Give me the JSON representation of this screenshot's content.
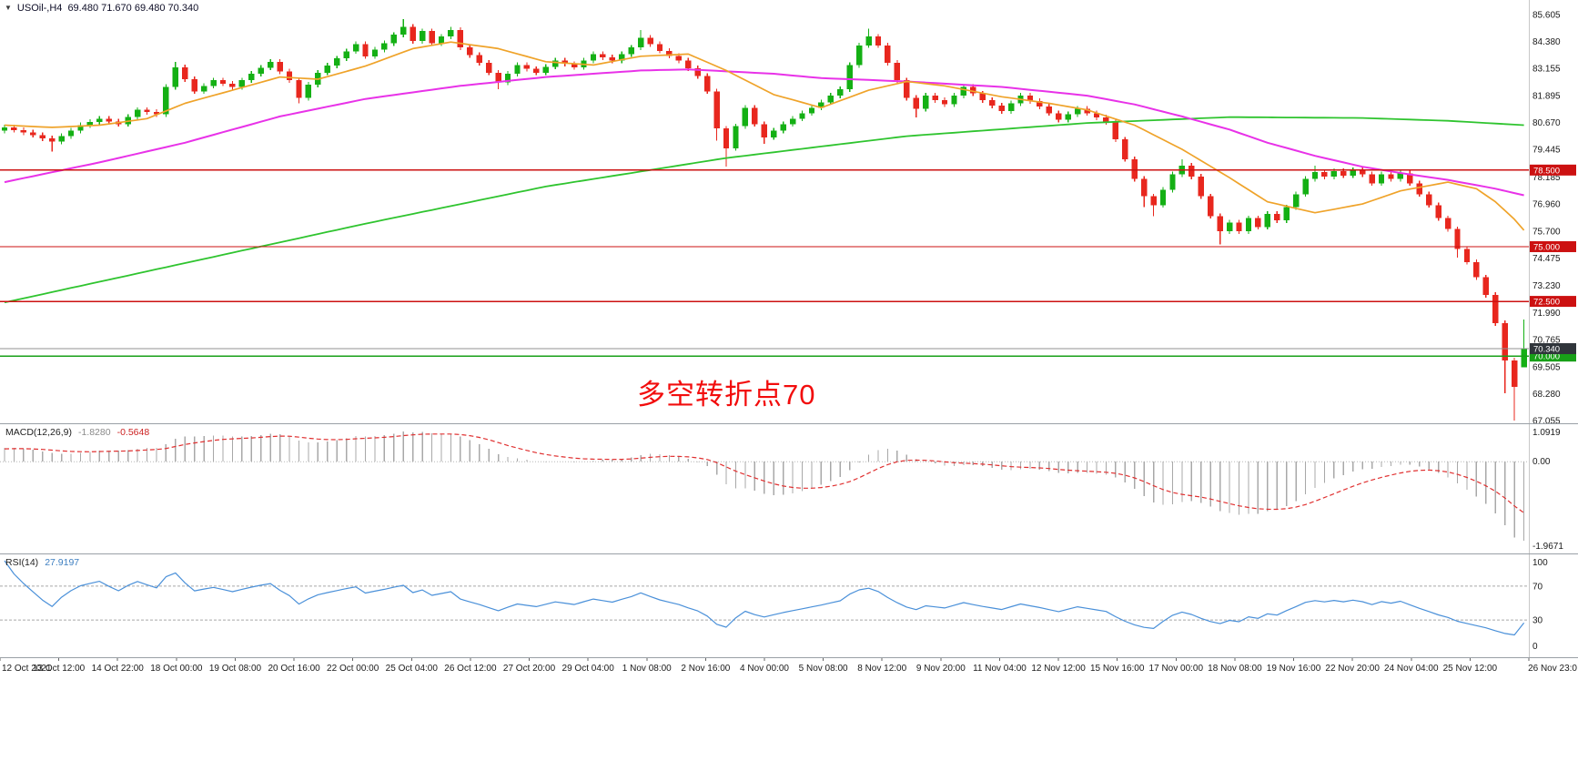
{
  "header": {
    "symbol": "USOil-,H4",
    "ohlc": "69.480 71.670 69.480 70.340"
  },
  "annotation": {
    "text": "多空转折点70",
    "color": "#f20d0d"
  },
  "chart_data": {
    "type": "candlestick",
    "title": "USOil-,H4",
    "grid": false,
    "y_axis": {
      "min": 67.055,
      "max": 85.605,
      "labels": [
        "85.605",
        "84.380",
        "83.155",
        "81.895",
        "80.670",
        "79.445",
        "78.185",
        "76.960",
        "75.700",
        "74.475",
        "73.230",
        "71.990",
        "70.765",
        "69.505",
        "68.280",
        "67.055"
      ]
    },
    "x_axis": {
      "labels": [
        "12 Oct 2021",
        "13 Oct 12:00",
        "14 Oct 22:00",
        "18 Oct 00:00",
        "19 Oct 08:00",
        "20 Oct 16:00",
        "22 Oct 00:00",
        "25 Oct 04:00",
        "26 Oct 12:00",
        "27 Oct 20:00",
        "29 Oct 04:00",
        "1 Nov 08:00",
        "2 Nov 16:00",
        "4 Nov 00:00",
        "5 Nov 08:00",
        "8 Nov 12:00",
        "9 Nov 20:00",
        "11 Nov 04:00",
        "12 Nov 12:00",
        "15 Nov 16:00",
        "17 Nov 00:00",
        "18 Nov 08:00",
        "19 Nov 16:00",
        "22 Nov 20:00",
        "24 Nov 04:00",
        "25 Nov 12:00",
        "26 Nov 23:0"
      ]
    },
    "colors": {
      "bull": "#14b014",
      "bear": "#e8271e",
      "axis_text": "#1a1a1a"
    },
    "current_price": {
      "value": 70.34,
      "label": "70.340"
    },
    "levels": [
      {
        "price": 78.5,
        "label": "78.500",
        "color": "#cc1111",
        "tag_bg": "#cc1111",
        "tag": true,
        "width": 1.4
      },
      {
        "price": 75.0,
        "label": "75.000",
        "color": "#cc1111",
        "tag_bg": "#cc1111",
        "tag": true,
        "width": 1.4
      },
      {
        "price": 72.5,
        "label": "72.500",
        "color": "#cc1111",
        "tag_bg": "#cc1111",
        "tag": true,
        "width": 1.4
      },
      {
        "price": 70.0,
        "label": "70.000",
        "color": "#18a018",
        "tag_bg": "#18a018",
        "tag": true,
        "width": 1.6
      },
      {
        "price": 70.34,
        "label": "70.340",
        "color": "#909090",
        "tag_bg": "#30353b",
        "tag": true,
        "width": 1.0
      }
    ],
    "moving_averages": [
      {
        "name": "ma-slow-green",
        "color": "#2fc42f",
        "width": 1.8,
        "points": [
          [
            0,
            72.45
          ],
          [
            19,
            74.25
          ],
          [
            38,
            76.05
          ],
          [
            57,
            77.75
          ],
          [
            76,
            79.05
          ],
          [
            95,
            80.05
          ],
          [
            114,
            80.65
          ],
          [
            129,
            80.92
          ],
          [
            143,
            80.88
          ],
          [
            152,
            80.75
          ],
          [
            160,
            80.55
          ]
        ]
      },
      {
        "name": "ma-mid-magenta",
        "color": "#e832e8",
        "width": 2.0,
        "points": [
          [
            0,
            77.95
          ],
          [
            10,
            78.85
          ],
          [
            19,
            79.75
          ],
          [
            29,
            80.95
          ],
          [
            38,
            81.75
          ],
          [
            48,
            82.35
          ],
          [
            57,
            82.75
          ],
          [
            67,
            83.05
          ],
          [
            72,
            83.1
          ],
          [
            81,
            82.9
          ],
          [
            86,
            82.7
          ],
          [
            95,
            82.55
          ],
          [
            105,
            82.3
          ],
          [
            114,
            81.9
          ],
          [
            119,
            81.5
          ],
          [
            124,
            80.95
          ],
          [
            129,
            80.35
          ],
          [
            133,
            79.75
          ],
          [
            138,
            79.15
          ],
          [
            143,
            78.65
          ],
          [
            148,
            78.3
          ],
          [
            152,
            78.05
          ],
          [
            157,
            77.65
          ],
          [
            160,
            77.35
          ]
        ]
      },
      {
        "name": "ma-fast-orange",
        "color": "#efa32a",
        "width": 1.7,
        "points": [
          [
            0,
            80.55
          ],
          [
            5,
            80.45
          ],
          [
            10,
            80.55
          ],
          [
            15,
            80.85
          ],
          [
            19,
            81.55
          ],
          [
            24,
            82.15
          ],
          [
            29,
            82.75
          ],
          [
            33,
            82.65
          ],
          [
            38,
            83.25
          ],
          [
            43,
            84.05
          ],
          [
            47,
            84.35
          ],
          [
            52,
            84.05
          ],
          [
            57,
            83.45
          ],
          [
            62,
            83.3
          ],
          [
            67,
            83.7
          ],
          [
            72,
            83.8
          ],
          [
            76,
            83.05
          ],
          [
            81,
            81.95
          ],
          [
            86,
            81.35
          ],
          [
            91,
            82.15
          ],
          [
            95,
            82.55
          ],
          [
            99,
            82.35
          ],
          [
            105,
            81.85
          ],
          [
            110,
            81.55
          ],
          [
            114,
            81.25
          ],
          [
            119,
            80.55
          ],
          [
            124,
            79.45
          ],
          [
            129,
            78.15
          ],
          [
            133,
            77.05
          ],
          [
            138,
            76.55
          ],
          [
            143,
            76.95
          ],
          [
            147,
            77.55
          ],
          [
            152,
            77.95
          ],
          [
            155,
            77.65
          ],
          [
            157,
            77.05
          ],
          [
            159,
            76.25
          ],
          [
            160,
            75.75
          ]
        ]
      }
    ],
    "candles": [
      [
        80.3,
        80.57,
        80.18,
        80.45
      ],
      [
        80.45,
        80.57,
        80.21,
        80.33
      ],
      [
        80.33,
        80.45,
        80.1,
        80.22
      ],
      [
        80.22,
        80.34,
        79.98,
        80.1
      ],
      [
        80.1,
        80.22,
        79.83,
        79.95
      ],
      [
        79.95,
        80.07,
        79.35,
        79.8
      ],
      [
        79.8,
        80.17,
        79.68,
        80.05
      ],
      [
        80.05,
        80.42,
        79.93,
        80.3
      ],
      [
        80.3,
        80.67,
        80.18,
        80.55
      ],
      [
        80.55,
        80.82,
        80.43,
        80.7
      ],
      [
        80.7,
        80.97,
        80.58,
        80.85
      ],
      [
        80.85,
        80.97,
        80.6,
        80.72
      ],
      [
        80.72,
        80.84,
        80.48,
        80.6
      ],
      [
        80.6,
        81.05,
        80.48,
        80.93
      ],
      [
        80.93,
        81.37,
        80.81,
        81.25
      ],
      [
        81.25,
        81.37,
        81.03,
        81.15
      ],
      [
        81.15,
        81.27,
        80.93,
        81.05
      ],
      [
        81.05,
        82.42,
        80.93,
        82.3
      ],
      [
        82.3,
        83.45,
        82.18,
        83.2
      ],
      [
        83.2,
        83.32,
        82.53,
        82.65
      ],
      [
        82.65,
        82.77,
        81.98,
        82.1
      ],
      [
        82.1,
        82.47,
        81.98,
        82.35
      ],
      [
        82.35,
        82.72,
        82.23,
        82.6
      ],
      [
        82.6,
        82.72,
        82.33,
        82.45
      ],
      [
        82.45,
        82.57,
        82.18,
        82.3
      ],
      [
        82.3,
        82.72,
        82.18,
        82.6
      ],
      [
        82.6,
        83.02,
        82.48,
        82.9
      ],
      [
        82.9,
        83.3,
        82.78,
        83.18
      ],
      [
        83.18,
        83.57,
        83.06,
        83.45
      ],
      [
        83.45,
        83.57,
        82.88,
        83.0
      ],
      [
        83.0,
        83.12,
        82.48,
        82.6
      ],
      [
        82.6,
        82.72,
        81.55,
        81.8
      ],
      [
        81.8,
        82.52,
        81.68,
        82.4
      ],
      [
        82.4,
        83.07,
        82.28,
        82.95
      ],
      [
        82.95,
        83.4,
        82.83,
        83.28
      ],
      [
        83.28,
        83.72,
        83.16,
        83.6
      ],
      [
        83.6,
        84.05,
        83.48,
        83.93
      ],
      [
        83.93,
        84.37,
        83.81,
        84.25
      ],
      [
        84.25,
        84.37,
        83.58,
        83.7
      ],
      [
        83.7,
        84.12,
        83.58,
        84.0
      ],
      [
        84.0,
        84.42,
        83.88,
        84.3
      ],
      [
        84.3,
        84.8,
        84.18,
        84.68
      ],
      [
        84.68,
        85.4,
        84.56,
        85.05
      ],
      [
        85.05,
        85.17,
        84.28,
        84.4
      ],
      [
        84.4,
        84.97,
        84.28,
        84.85
      ],
      [
        84.85,
        84.97,
        84.18,
        84.3
      ],
      [
        84.3,
        84.72,
        84.18,
        84.6
      ],
      [
        84.6,
        85.05,
        84.48,
        84.9
      ],
      [
        84.9,
        85.02,
        83.98,
        84.1
      ],
      [
        84.1,
        84.22,
        83.63,
        83.75
      ],
      [
        83.75,
        83.87,
        83.28,
        83.4
      ],
      [
        83.4,
        83.52,
        82.83,
        82.95
      ],
      [
        82.95,
        83.07,
        82.2,
        82.5
      ],
      [
        82.5,
        83.02,
        82.38,
        82.9
      ],
      [
        82.9,
        83.42,
        82.78,
        83.3
      ],
      [
        83.3,
        83.42,
        83.0,
        83.12
      ],
      [
        83.12,
        83.24,
        82.83,
        82.95
      ],
      [
        82.95,
        83.34,
        82.83,
        83.22
      ],
      [
        83.22,
        83.62,
        83.1,
        83.5
      ],
      [
        83.5,
        83.62,
        83.23,
        83.35
      ],
      [
        83.35,
        83.47,
        83.08,
        83.2
      ],
      [
        83.2,
        83.62,
        83.08,
        83.5
      ],
      [
        83.5,
        83.92,
        83.38,
        83.8
      ],
      [
        83.8,
        83.92,
        83.53,
        83.65
      ],
      [
        83.65,
        83.77,
        83.38,
        83.5
      ],
      [
        83.5,
        83.92,
        83.38,
        83.8
      ],
      [
        83.8,
        84.22,
        83.68,
        84.1
      ],
      [
        84.1,
        84.9,
        83.98,
        84.55
      ],
      [
        84.55,
        84.67,
        84.13,
        84.25
      ],
      [
        84.25,
        84.37,
        83.83,
        83.95
      ],
      [
        83.95,
        84.07,
        83.6,
        83.72
      ],
      [
        83.72,
        83.84,
        83.38,
        83.5
      ],
      [
        83.5,
        83.62,
        83.03,
        83.15
      ],
      [
        83.15,
        83.27,
        82.68,
        82.8
      ],
      [
        82.8,
        82.92,
        81.98,
        82.1
      ],
      [
        82.1,
        82.22,
        79.85,
        80.4
      ],
      [
        80.4,
        80.52,
        78.66,
        79.5
      ],
      [
        79.5,
        80.62,
        79.38,
        80.5
      ],
      [
        80.5,
        81.47,
        80.38,
        81.35
      ],
      [
        81.35,
        81.47,
        80.48,
        80.6
      ],
      [
        80.6,
        80.72,
        79.7,
        80.0
      ],
      [
        80.0,
        80.42,
        79.88,
        80.3
      ],
      [
        80.3,
        80.72,
        80.18,
        80.6
      ],
      [
        80.6,
        80.97,
        80.48,
        80.85
      ],
      [
        80.85,
        81.22,
        80.73,
        81.1
      ],
      [
        81.1,
        81.47,
        80.98,
        81.35
      ],
      [
        81.35,
        81.72,
        81.23,
        81.6
      ],
      [
        81.6,
        82.02,
        81.48,
        81.9
      ],
      [
        81.9,
        82.32,
        81.78,
        82.2
      ],
      [
        82.2,
        83.42,
        82.08,
        83.3
      ],
      [
        83.3,
        84.32,
        83.18,
        84.2
      ],
      [
        84.2,
        84.97,
        84.08,
        84.6
      ],
      [
        84.6,
        84.72,
        84.08,
        84.2
      ],
      [
        84.2,
        84.32,
        83.28,
        83.4
      ],
      [
        83.4,
        83.52,
        82.48,
        82.6
      ],
      [
        82.6,
        82.72,
        81.68,
        81.8
      ],
      [
        81.8,
        81.92,
        80.9,
        81.3
      ],
      [
        81.3,
        82.02,
        81.18,
        81.9
      ],
      [
        81.9,
        82.02,
        81.58,
        81.7
      ],
      [
        81.7,
        81.82,
        81.38,
        81.5
      ],
      [
        81.5,
        82.02,
        81.38,
        81.9
      ],
      [
        81.9,
        82.42,
        81.78,
        82.3
      ],
      [
        82.3,
        82.42,
        81.88,
        82.0
      ],
      [
        82.0,
        82.12,
        81.58,
        81.7
      ],
      [
        81.7,
        81.82,
        81.33,
        81.45
      ],
      [
        81.45,
        81.57,
        81.08,
        81.2
      ],
      [
        81.2,
        81.67,
        81.08,
        81.55
      ],
      [
        81.55,
        82.02,
        81.43,
        81.9
      ],
      [
        81.9,
        82.02,
        81.53,
        81.65
      ],
      [
        81.65,
        81.77,
        81.28,
        81.4
      ],
      [
        81.4,
        81.52,
        80.98,
        81.1
      ],
      [
        81.1,
        81.22,
        80.68,
        80.8
      ],
      [
        80.8,
        81.17,
        80.68,
        81.05
      ],
      [
        81.05,
        81.42,
        80.93,
        81.3
      ],
      [
        81.3,
        81.42,
        80.98,
        81.1
      ],
      [
        81.1,
        81.22,
        80.78,
        80.9
      ],
      [
        80.9,
        81.02,
        80.58,
        80.7
      ],
      [
        80.7,
        80.82,
        79.78,
        79.9
      ],
      [
        79.9,
        80.02,
        78.88,
        79.0
      ],
      [
        79.0,
        79.12,
        77.98,
        78.1
      ],
      [
        78.1,
        78.22,
        76.8,
        77.3
      ],
      [
        77.3,
        77.42,
        76.4,
        76.9
      ],
      [
        76.9,
        77.72,
        76.78,
        77.6
      ],
      [
        77.6,
        78.42,
        77.48,
        78.3
      ],
      [
        78.3,
        79.0,
        78.18,
        78.7
      ],
      [
        78.7,
        78.82,
        78.08,
        78.2
      ],
      [
        78.2,
        78.32,
        77.18,
        77.3
      ],
      [
        77.3,
        77.42,
        76.28,
        76.4
      ],
      [
        76.4,
        76.52,
        75.1,
        75.7
      ],
      [
        75.7,
        76.22,
        75.58,
        76.1
      ],
      [
        76.1,
        76.22,
        75.58,
        75.7
      ],
      [
        75.7,
        76.42,
        75.58,
        76.3
      ],
      [
        76.3,
        76.42,
        75.78,
        75.9
      ],
      [
        75.9,
        76.62,
        75.78,
        76.5
      ],
      [
        76.5,
        76.62,
        76.08,
        76.2
      ],
      [
        76.2,
        76.92,
        76.08,
        76.8
      ],
      [
        76.8,
        77.52,
        76.68,
        77.4
      ],
      [
        77.4,
        78.22,
        77.28,
        78.1
      ],
      [
        78.1,
        78.7,
        77.98,
        78.4
      ],
      [
        78.4,
        78.52,
        78.08,
        78.2
      ],
      [
        78.2,
        78.57,
        78.08,
        78.45
      ],
      [
        78.45,
        78.57,
        78.13,
        78.25
      ],
      [
        78.25,
        78.62,
        78.13,
        78.5
      ],
      [
        78.5,
        78.62,
        78.18,
        78.3
      ],
      [
        78.3,
        78.42,
        77.78,
        77.9
      ],
      [
        77.9,
        78.42,
        77.78,
        78.3
      ],
      [
        78.3,
        78.42,
        77.98,
        78.1
      ],
      [
        78.1,
        78.47,
        77.98,
        78.35
      ],
      [
        78.35,
        78.47,
        77.78,
        77.9
      ],
      [
        77.9,
        78.02,
        77.28,
        77.4
      ],
      [
        77.4,
        77.52,
        76.78,
        76.9
      ],
      [
        76.9,
        77.02,
        76.18,
        76.3
      ],
      [
        76.3,
        76.42,
        75.68,
        75.8
      ],
      [
        75.8,
        75.92,
        74.5,
        74.9
      ],
      [
        74.9,
        75.02,
        74.18,
        74.3
      ],
      [
        74.3,
        74.42,
        73.48,
        73.6
      ],
      [
        73.6,
        73.72,
        72.68,
        72.8
      ],
      [
        72.8,
        72.92,
        71.38,
        71.5
      ],
      [
        71.5,
        71.62,
        68.3,
        69.8
      ],
      [
        69.8,
        69.92,
        67.06,
        68.6
      ],
      [
        69.48,
        71.67,
        69.48,
        70.34
      ]
    ],
    "indicators": {
      "macd": {
        "label": "MACD(12,26,9)",
        "main_value": "-1.8280",
        "signal_value": "-0.5648",
        "fast": 12,
        "slow": 26,
        "signal": 9,
        "axis_labels": [
          "1.0919",
          "0.00",
          "-1.9671"
        ],
        "hist_color": "#a8a8a8",
        "signal_color": "#e03030"
      },
      "rsi": {
        "label": "RSI(14)",
        "value": "27.9197",
        "period": 14,
        "axis_labels": [
          "100",
          "70",
          "30",
          "0"
        ],
        "levels": [
          70,
          30
        ],
        "color": "#4a90d9"
      }
    }
  }
}
